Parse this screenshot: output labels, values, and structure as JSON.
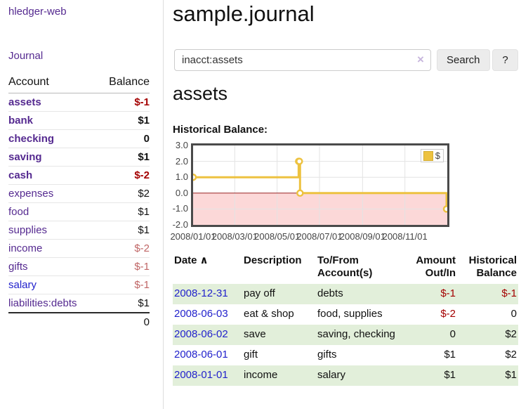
{
  "app": {
    "brand": "hledger-web"
  },
  "sidebar": {
    "journal_label": "Journal",
    "accounts": {
      "headers": {
        "account": "Account",
        "balance": "Balance"
      },
      "rows": [
        {
          "name": "assets",
          "balance": "$-1",
          "indent": 1,
          "bold": true,
          "link_color": "visited",
          "balance_style": "neg-strong"
        },
        {
          "name": "bank",
          "balance": "$1",
          "indent": 2,
          "bold": true,
          "link_color": "visited",
          "balance_style": ""
        },
        {
          "name": "checking",
          "balance": "0",
          "indent": 3,
          "bold": true,
          "link_color": "visited",
          "balance_style": ""
        },
        {
          "name": "saving",
          "balance": "$1",
          "indent": 3,
          "bold": true,
          "link_color": "visited",
          "balance_style": ""
        },
        {
          "name": "cash",
          "balance": "$-2",
          "indent": 2,
          "bold": true,
          "link_color": "visited",
          "balance_style": "neg-strong"
        },
        {
          "name": "expenses",
          "balance": "$2",
          "indent": 1,
          "bold": false,
          "link_color": "visited",
          "balance_style": ""
        },
        {
          "name": "food",
          "balance": "$1",
          "indent": 2,
          "bold": false,
          "link_color": "visited",
          "balance_style": ""
        },
        {
          "name": "supplies",
          "balance": "$1",
          "indent": 2,
          "bold": false,
          "link_color": "visited",
          "balance_style": ""
        },
        {
          "name": "income",
          "balance": "$-2",
          "indent": 1,
          "bold": false,
          "link_color": "visited",
          "balance_style": "neg-weak"
        },
        {
          "name": "gifts",
          "balance": "$-1",
          "indent": 2,
          "bold": false,
          "link_color": "visited",
          "balance_style": "neg-weak"
        },
        {
          "name": "salary",
          "balance": "$-1",
          "indent": 2,
          "bold": false,
          "link_color": "new",
          "balance_style": "neg-weak"
        },
        {
          "name": "liabilities:debts",
          "balance": "$1",
          "indent": 1,
          "bold": false,
          "link_color": "visited",
          "balance_style": ""
        }
      ],
      "total": "0"
    }
  },
  "main": {
    "title": "sample.journal",
    "search": {
      "value": "inacct:assets",
      "clear_icon": "×",
      "button_label": "Search",
      "help_label": "?"
    },
    "account_heading": "assets"
  },
  "chart_data": {
    "type": "line",
    "title": "Historical Balance:",
    "legend": {
      "label": "$",
      "position": "top-right"
    },
    "series": [
      {
        "name": "$",
        "color": "#edc240",
        "steps": true,
        "points": [
          {
            "date": "2008-01-01",
            "value": 1
          },
          {
            "date": "2008-06-01",
            "value": 2
          },
          {
            "date": "2008-06-02",
            "value": 2
          },
          {
            "date": "2008-06-03",
            "value": 0
          },
          {
            "date": "2008-12-31",
            "value": -1
          }
        ]
      }
    ],
    "x_axis": {
      "start": "2008-01-01",
      "end": "2009-01-01",
      "tick_labels": [
        "2008/01/01",
        "2008/03/01",
        "2008/05/01",
        "2008/07/01",
        "2008/09/01",
        "2008/11/01"
      ]
    },
    "y_axis": {
      "min": -2.0,
      "max": 3.0,
      "tick_labels": [
        "3.0",
        "2.0",
        "1.0",
        "0.0",
        "-1.0",
        "-2.0"
      ]
    },
    "grid": true,
    "negative_region_color": "#fcd8d8",
    "zero_line_color": "#992222"
  },
  "register": {
    "sort_icon": "∧",
    "headers": [
      {
        "line1": "Date",
        "line2": ""
      },
      {
        "line1": "Description",
        "line2": ""
      },
      {
        "line1": "To/From",
        "line2": "Account(s)"
      },
      {
        "line1": "Amount",
        "line2": "Out/In"
      },
      {
        "line1": "Historical",
        "line2": "Balance"
      }
    ],
    "rows": [
      {
        "date": "2008-12-31",
        "description": "pay off",
        "accounts": "debts",
        "amount": "$-1",
        "balance": "$-1",
        "amount_neg": true,
        "balance_neg": true
      },
      {
        "date": "2008-06-03",
        "description": "eat & shop",
        "accounts": "food, supplies",
        "amount": "$-2",
        "balance": "0",
        "amount_neg": true,
        "balance_neg": false
      },
      {
        "date": "2008-06-02",
        "description": "save",
        "accounts": "saving, checking",
        "amount": "0",
        "balance": "$2",
        "amount_neg": false,
        "balance_neg": false
      },
      {
        "date": "2008-06-01",
        "description": "gift",
        "accounts": "gifts",
        "amount": "$1",
        "balance": "$2",
        "amount_neg": false,
        "balance_neg": false
      },
      {
        "date": "2008-01-01",
        "description": "income",
        "accounts": "salary",
        "amount": "$1",
        "balance": "$1",
        "amount_neg": false,
        "balance_neg": false
      }
    ]
  }
}
